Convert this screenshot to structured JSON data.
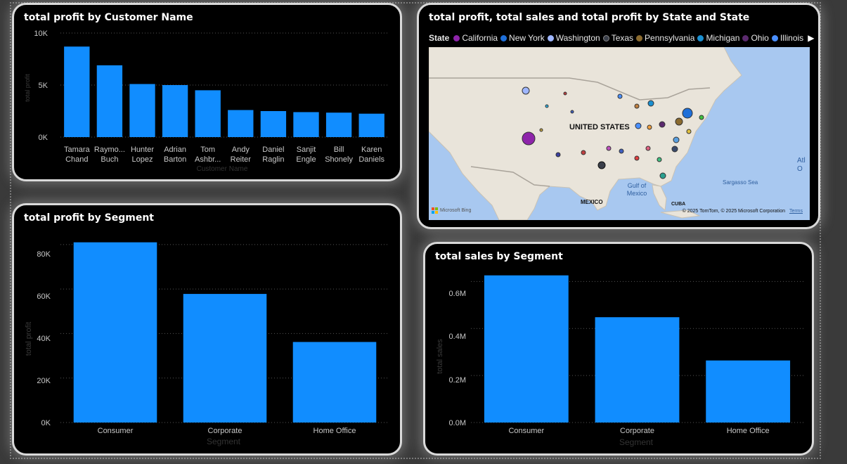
{
  "colors": {
    "bar": "#118dff",
    "card_bg": "#000000",
    "card_border": "#d9d9d9",
    "canvas_bg": "#3a3a3a"
  },
  "customer_chart": {
    "title": "total profit by Customer Name",
    "y_axis_label": "total profit",
    "x_axis_label": "Customer Name",
    "ticks": [
      "0K",
      "5K",
      "10K"
    ]
  },
  "map_card": {
    "title": "total profit, total sales and total profit by State and State",
    "legend_title": "State",
    "legend": [
      {
        "name": "California",
        "color": "#8e24aa"
      },
      {
        "name": "New York",
        "color": "#1e6fd9"
      },
      {
        "name": "Washington",
        "color": "#9fb6ff"
      },
      {
        "name": "Texas",
        "color": "#3a3f4a"
      },
      {
        "name": "Pennsylvania",
        "color": "#8a6a2e"
      },
      {
        "name": "Michigan",
        "color": "#1a8fd0"
      },
      {
        "name": "Ohio",
        "color": "#5b2a6e"
      },
      {
        "name": "Illinois",
        "color": "#4a8fff"
      }
    ],
    "legend_more_icon": "chevron-right-icon",
    "labels": {
      "country": "UNITED STATES",
      "mexico": "MEXICO",
      "gulf": "Gulf of Mexico",
      "cuba": "CUBA",
      "sargasso": "Sargasso Sea",
      "atlantic": "Atl O",
      "bing": "Microsoft Bing",
      "copyright": "© 2025 TomTom, © 2025 Microsoft Corporation",
      "terms": "Terms"
    }
  },
  "segment_profit_chart": {
    "title": "total profit by Segment",
    "y_axis_label": "total profit",
    "x_axis_label": "Segment",
    "ticks": [
      "0K",
      "20K",
      "40K",
      "60K",
      "80K"
    ]
  },
  "segment_sales_chart": {
    "title": "total sales by Segment",
    "y_axis_label": "total sales",
    "x_axis_label": "Segment",
    "ticks": [
      "0.0M",
      "0.2M",
      "0.4M",
      "0.6M"
    ]
  },
  "chart_data": [
    {
      "type": "bar",
      "title": "total profit by Customer Name",
      "xlabel": "Customer Name",
      "ylabel": "total profit",
      "categories": [
        "Tamara Chand",
        "Raymond Buch",
        "Hunter Lopez",
        "Adrian Barton",
        "Tom Ashbrook",
        "Andy Reiter",
        "Daniel Raglin",
        "Sanjit Engle",
        "Bill Shonely",
        "Karen Daniels"
      ],
      "category_labels": [
        [
          "Tamara",
          "Chand"
        ],
        [
          "Raymo...",
          "Buch"
        ],
        [
          "Hunter",
          "Lopez"
        ],
        [
          "Adrian",
          "Barton"
        ],
        [
          "Tom",
          "Ashbr..."
        ],
        [
          "Andy",
          "Reiter"
        ],
        [
          "Daniel",
          "Raglin"
        ],
        [
          "Sanjit",
          "Engle"
        ],
        [
          "Bill",
          "Shonely"
        ],
        [
          "Karen",
          "Daniels"
        ]
      ],
      "values": [
        8700,
        6900,
        5100,
        5000,
        4500,
        2600,
        2500,
        2400,
        2350,
        2250
      ],
      "ylim": [
        0,
        10000
      ],
      "grid": true
    },
    {
      "type": "bar",
      "title": "total profit by Segment",
      "xlabel": "Segment",
      "ylabel": "total profit",
      "categories": [
        "Consumer",
        "Corporate",
        "Home Office"
      ],
      "values": [
        81000,
        57800,
        36200
      ],
      "ylim": [
        0,
        85000
      ],
      "grid": true
    },
    {
      "type": "bar",
      "title": "total sales by Segment",
      "xlabel": "Segment",
      "ylabel": "total sales",
      "categories": [
        "Consumer",
        "Corporate",
        "Home Office"
      ],
      "values": [
        626000,
        448000,
        264000
      ],
      "ylim": [
        0,
        640000
      ],
      "grid": true
    }
  ]
}
